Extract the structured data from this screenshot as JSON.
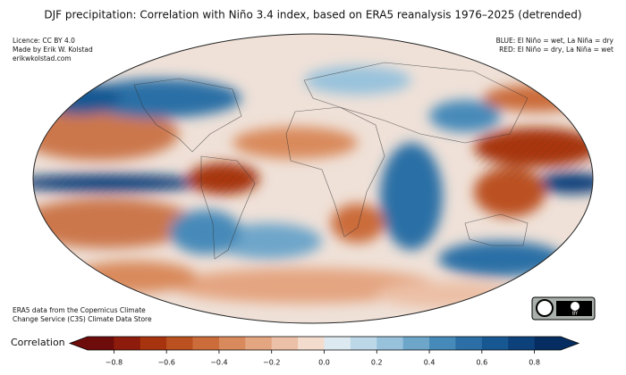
{
  "title": "DJF precipitation: Correlation with Niño 3.4 index, based on ERA5 reanalysis 1976–2025 (detrended)",
  "credits": [
    "Licence: CC BY 4.0",
    "Made by Erik W. Kolstad",
    "erikwkolstad.com"
  ],
  "legend_notes": [
    "BLUE: El Niño = wet, La Niña = dry",
    "RED: El Niño = dry, La Niña = wet"
  ],
  "source": [
    "ERA5 data from the Copernicus Climate",
    "Change Service (C3S) Climate Data Store"
  ],
  "badge": "BY",
  "colorbar": {
    "label": "Correlation",
    "range": [
      -0.9,
      0.9
    ],
    "extend": "both",
    "colors": [
      "#6e0b0b",
      "#8e1c0c",
      "#a8340f",
      "#bb5120",
      "#cb6c3a",
      "#d98a5c",
      "#e4a581",
      "#ecc0a6",
      "#f3dccd",
      "#dce9f1",
      "#bcd7e7",
      "#98c2dc",
      "#6ea6ca",
      "#468ab9",
      "#2b6fa6",
      "#175893",
      "#0c417b",
      "#062d61"
    ],
    "ticks": [
      {
        "value": -0.8,
        "label": "−0.8"
      },
      {
        "value": -0.6,
        "label": "−0.6"
      },
      {
        "value": -0.4,
        "label": "−0.4"
      },
      {
        "value": -0.2,
        "label": "−0.2"
      },
      {
        "value": 0.0,
        "label": "0.0"
      },
      {
        "value": 0.2,
        "label": "0.2"
      },
      {
        "value": 0.4,
        "label": "0.4"
      },
      {
        "value": 0.6,
        "label": "0.6"
      },
      {
        "value": 0.8,
        "label": "0.8"
      }
    ]
  }
}
